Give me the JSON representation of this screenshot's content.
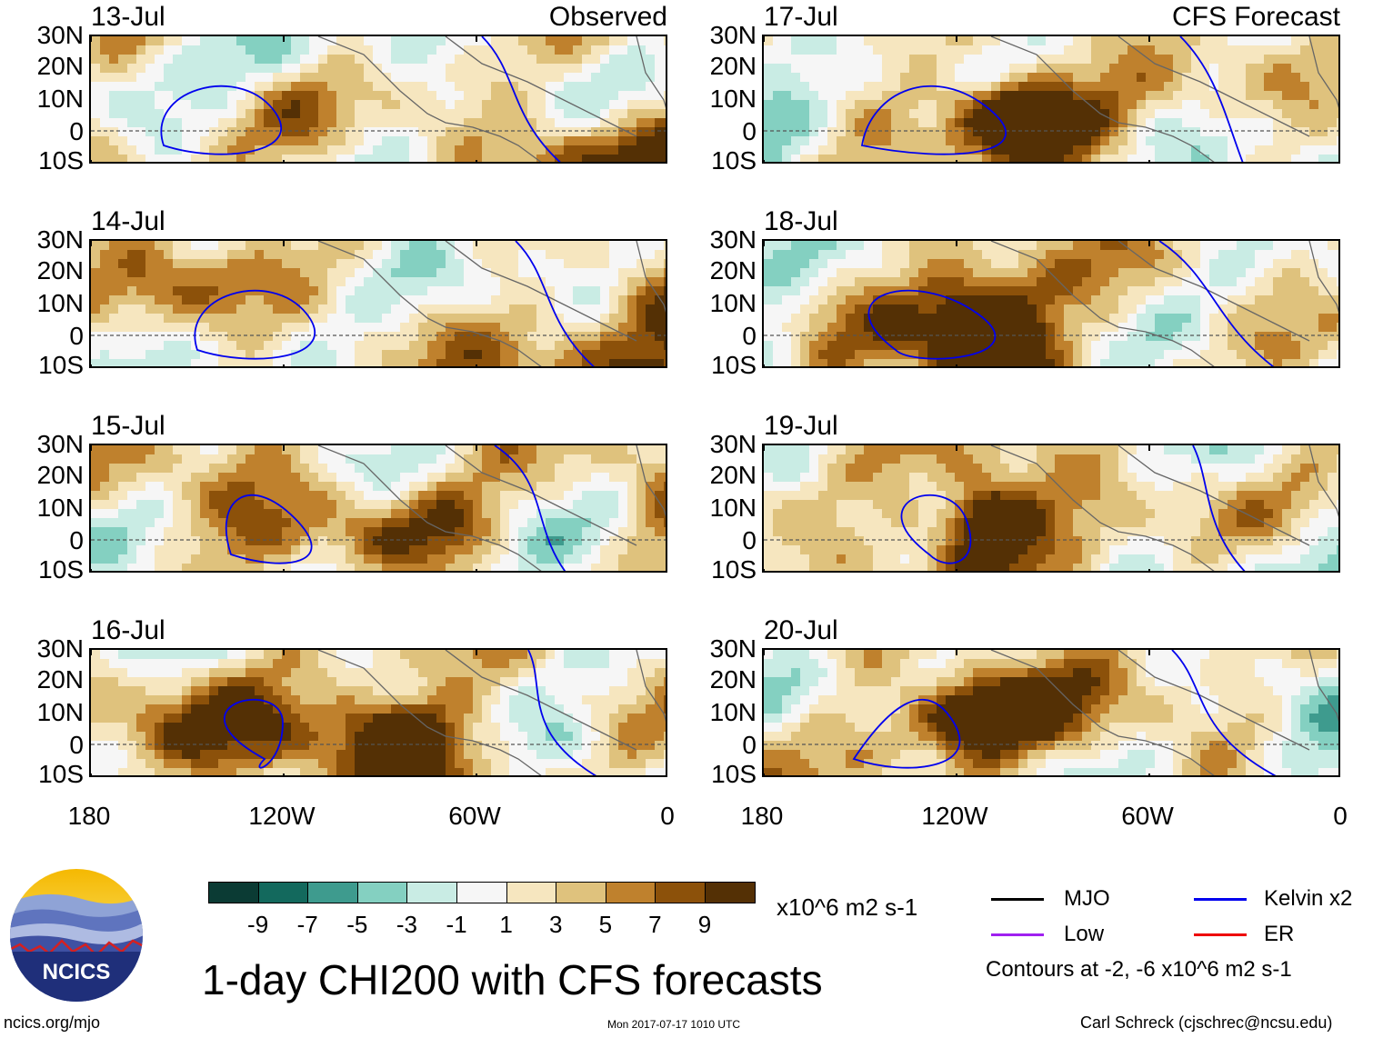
{
  "chart_data": {
    "type": "heatmap",
    "title": "1-day CHI200 with CFS forecasts",
    "units": "x10^6 m2 s-1",
    "columns": [
      {
        "header": "Observed",
        "panels": [
          "13-Jul",
          "14-Jul",
          "15-Jul",
          "16-Jul"
        ]
      },
      {
        "header": "CFS Forecast",
        "panels": [
          "17-Jul",
          "18-Jul",
          "19-Jul",
          "20-Jul"
        ]
      }
    ],
    "lat_ticks": [
      "30N",
      "20N",
      "10N",
      "0",
      "10S"
    ],
    "lon_ticks": [
      "180",
      "120W",
      "60W",
      "0"
    ],
    "ylim": [
      -10,
      30
    ],
    "xlim": [
      -180,
      0
    ],
    "colorbar": {
      "labels": [
        "-9",
        "-7",
        "-5",
        "-3",
        "-1",
        "1",
        "3",
        "5",
        "7",
        "9"
      ],
      "colors": [
        "#0b3b34",
        "#13695d",
        "#3e9b8e",
        "#84d0c1",
        "#c9ece4",
        "#f6f6f6",
        "#f6e6bf",
        "#dfc27d",
        "#bf812d",
        "#8c510a",
        "#543005"
      ]
    },
    "legend": {
      "items": [
        {
          "label": "MJO",
          "color": "#000000"
        },
        {
          "label": "Kelvin x2",
          "color": "#0000ee"
        },
        {
          "label": "Low",
          "color": "#a020f0"
        },
        {
          "label": "ER",
          "color": "#ee0000"
        }
      ],
      "note": "Contours at -2, -6 x10^6 m2 s-1"
    }
  },
  "footer": {
    "left": "ncics.org/mjo",
    "center": "Mon 2017-07-17 1010 UTC",
    "right": "Carl Schreck (cjschrec@ncsu.edu)"
  },
  "logo": {
    "text": "NCICS"
  }
}
